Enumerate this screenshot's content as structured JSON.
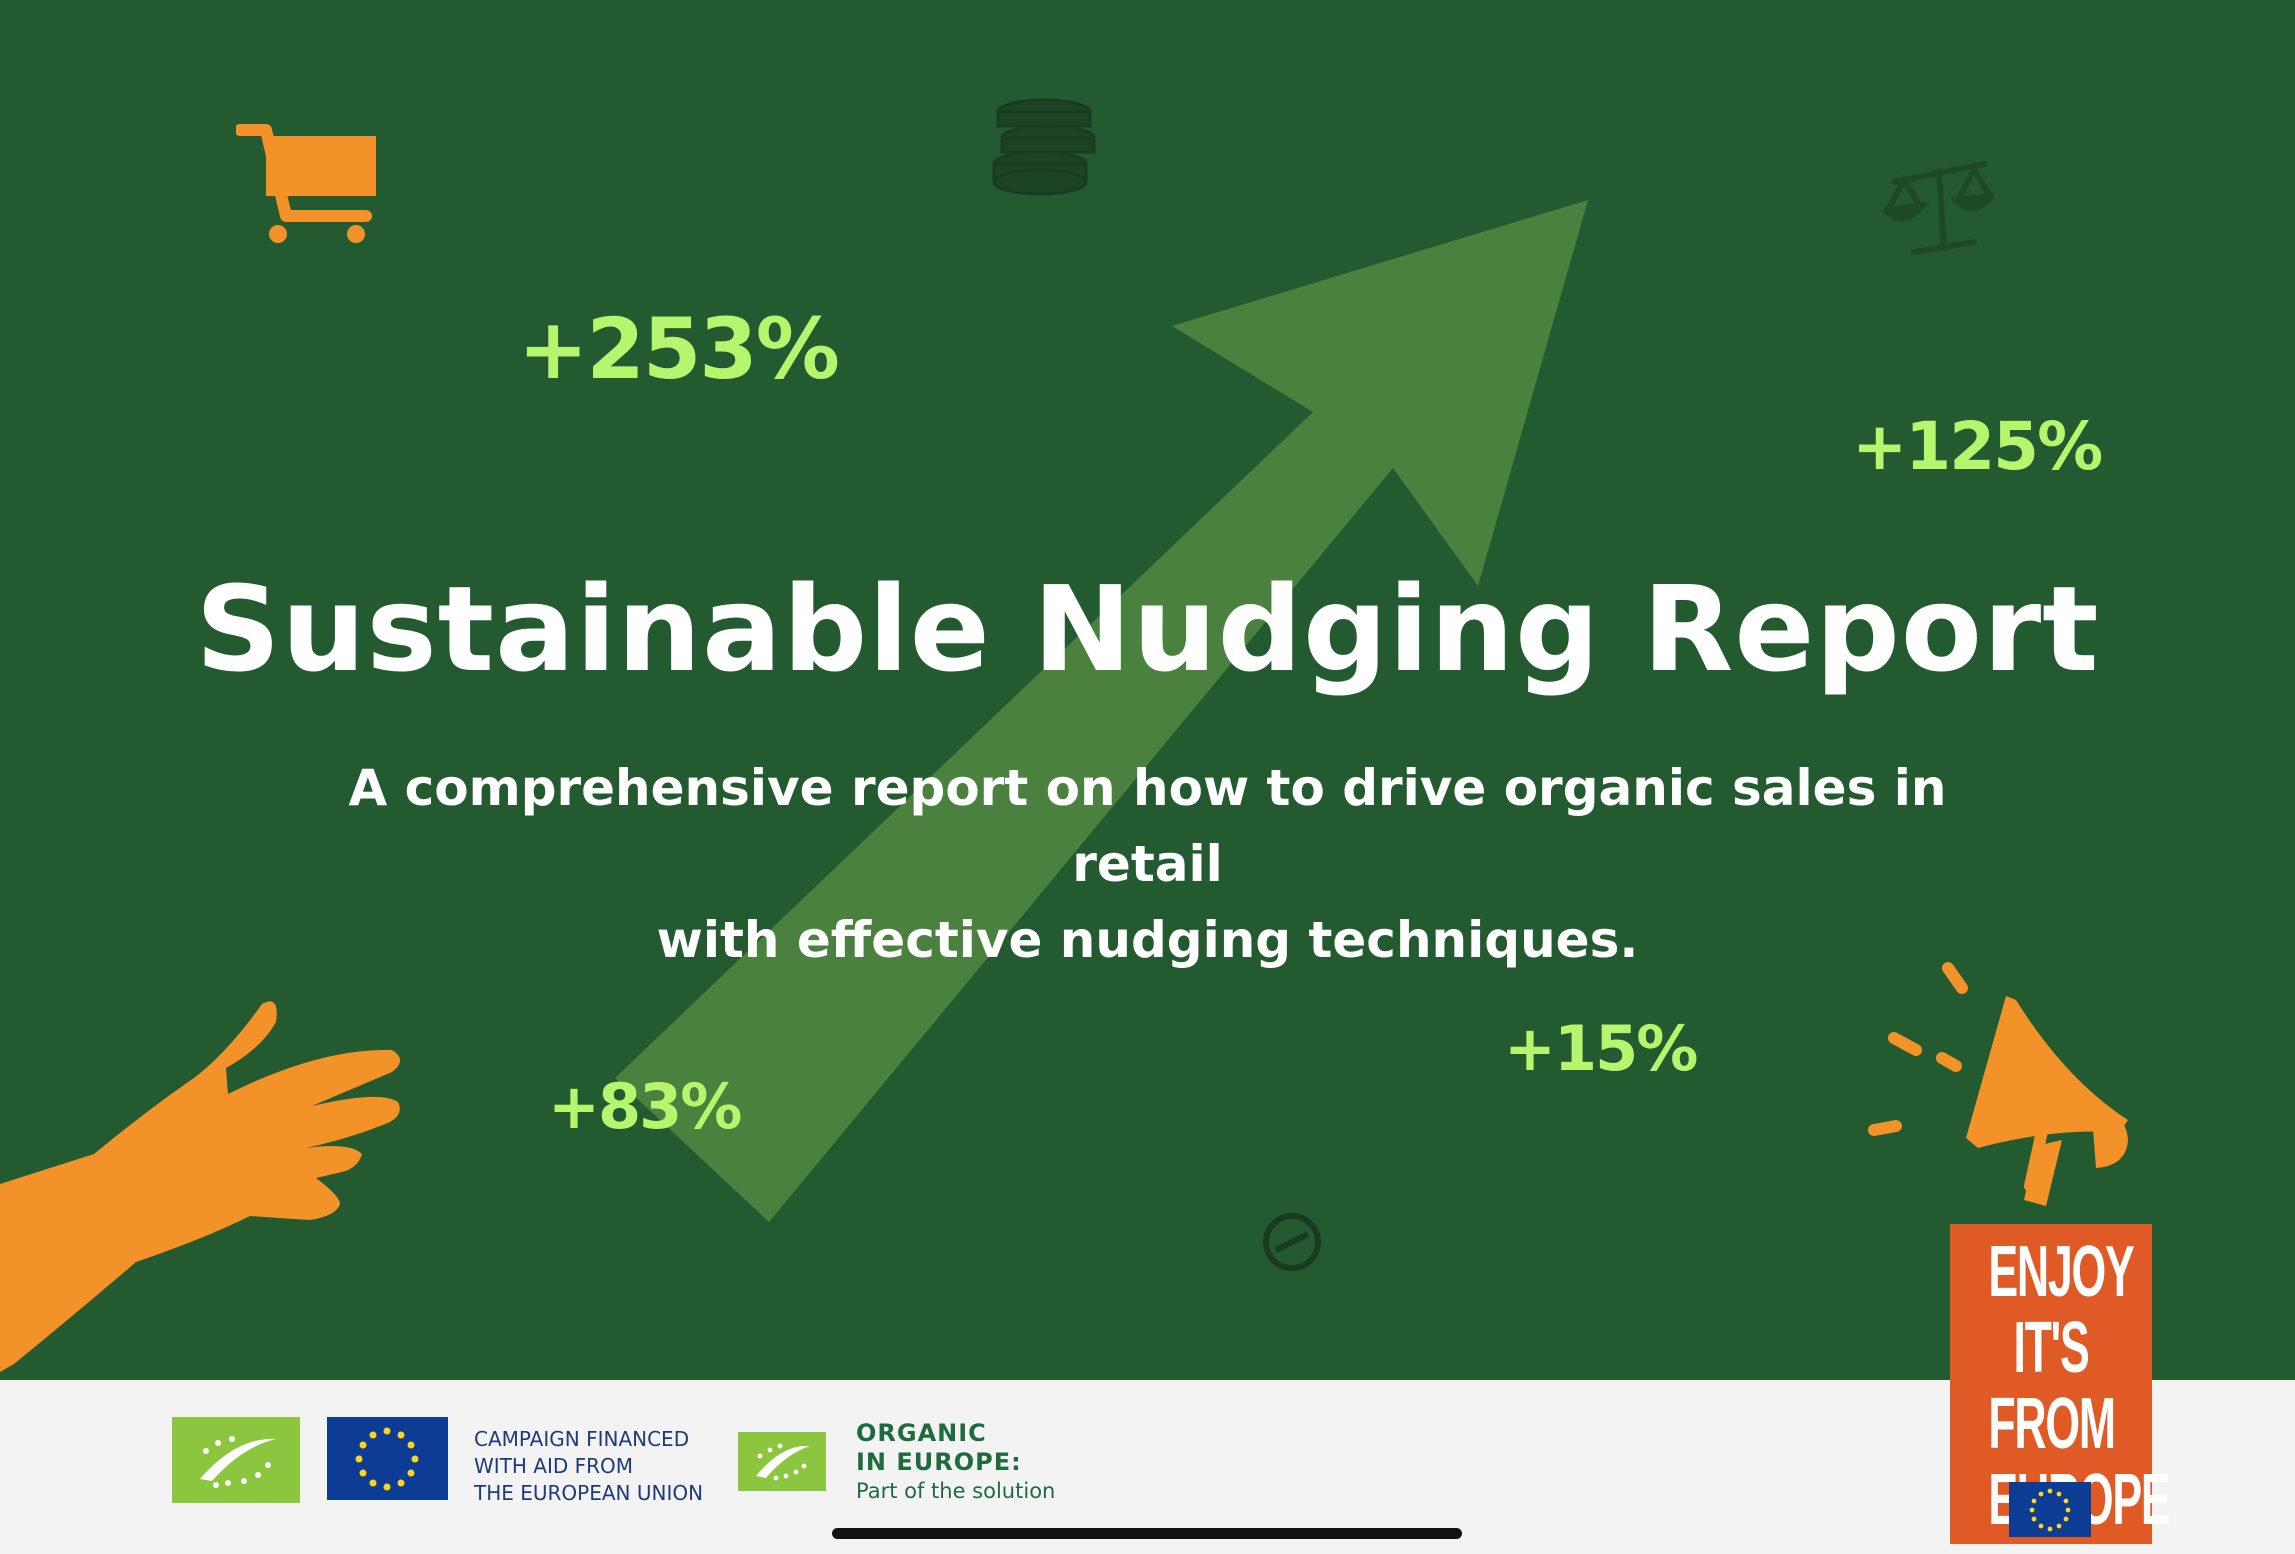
{
  "title": "Sustainable Nudging Report",
  "subtitle_line1": "A comprehensive report on how to drive organic sales in retail",
  "subtitle_line2": "with effective nudging techniques.",
  "stats": {
    "s1": "+253%",
    "s2": "+125%",
    "s3": "+83%",
    "s4": "+15%"
  },
  "icons": [
    "shopping-cart-icon",
    "coin-stack-icon",
    "scales-icon",
    "hand-icon",
    "megaphone-icon",
    "no-sign-icon",
    "trend-arrow-icon",
    "eu-organic-leaf-icon",
    "eu-flag-icon"
  ],
  "footer": {
    "campaign_line1": "CAMPAIGN FINANCED",
    "campaign_line2": "WITH AID FROM",
    "campaign_line3": "THE EUROPEAN UNION",
    "organic_line1": "ORGANIC",
    "organic_line2": "IN EUROPE:",
    "organic_sub": "Part of the solution"
  },
  "badge": {
    "line1": "ENJOY",
    "line2": "IT'S FROM",
    "line3": "EUROPE"
  },
  "colors": {
    "background": "#235a30",
    "arrow": "#4a813e",
    "stat": "#b6f56e",
    "accent_orange": "#f39229",
    "badge": "#e05a25",
    "eu_blue": "#0d3c95",
    "leaf_green": "#8cc63e"
  }
}
